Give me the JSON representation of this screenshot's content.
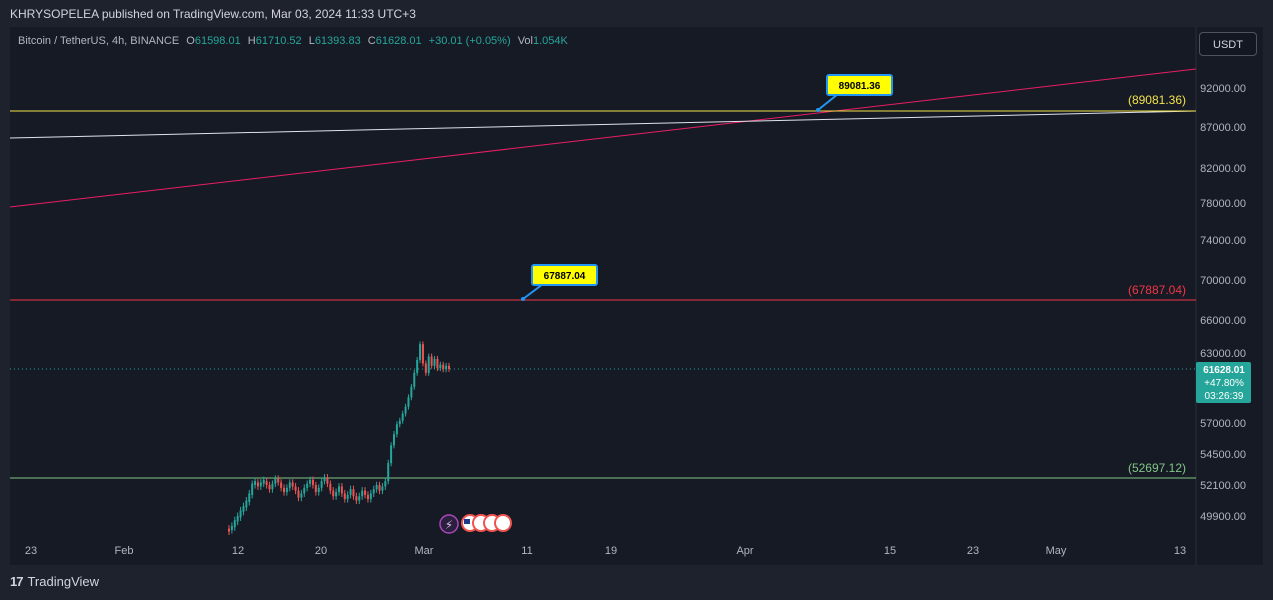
{
  "header": {
    "published_line": "KHRYSOPELEA published on TradingView.com, Mar 03, 2024 11:33 UTC+3"
  },
  "legend": {
    "symbol": "Bitcoin / TetherUS, 4h, BINANCE",
    "o_label": "O",
    "o_value": "61598.01",
    "h_label": "H",
    "h_value": "61710.52",
    "l_label": "L",
    "l_value": "61393.83",
    "c_label": "C",
    "c_value": "61628.01",
    "change": "+30.01 (+0.05%)",
    "vol_label": "Vol",
    "vol_value": "1.054K"
  },
  "currency_button": "USDT",
  "footer": {
    "brand": "TradingView"
  },
  "colors": {
    "up": "#26a69a",
    "down": "#ef5350",
    "yellow_line": "#f2e24b",
    "red_line": "#f23645",
    "green_line": "#81c784",
    "pink_trend": "#e91e63",
    "white_trend": "#e0e3eb",
    "callout_fill": "#ffff00",
    "callout_border": "#2196f3"
  },
  "chart_data": {
    "type": "candlestick",
    "symbol": "BTCUSDT",
    "timeframe": "4h",
    "y_ticks": [
      "92000.00",
      "87000.00",
      "82000.00",
      "78000.00",
      "74000.00",
      "70000.00",
      "66000.00",
      "63000.00",
      "57000.00",
      "54500.00",
      "52100.00",
      "49900.00"
    ],
    "x_ticks": [
      "23",
      "Feb",
      "12",
      "20",
      "Mar",
      "11",
      "19",
      "Apr",
      "15",
      "23",
      "May",
      "13"
    ],
    "last_price": {
      "value": "61628.01",
      "change_pct": "+47.80%",
      "countdown": "03:26:39"
    },
    "horizontal_lines": [
      {
        "value": 89081.36,
        "label": "(89081.36)",
        "color": "yellow"
      },
      {
        "value": 67887.04,
        "label": "(67887.04)",
        "color": "red"
      },
      {
        "value": 52697.12,
        "label": "(52697.12)",
        "color": "green"
      }
    ],
    "callouts": [
      {
        "text": "89081.36",
        "value": 89081.36
      },
      {
        "text": "67887.04",
        "value": 67887.04
      }
    ],
    "trendlines": [
      {
        "name": "",
        "color": "pink",
        "start_value": 77700,
        "end_value": 94300
      },
      {
        "name": "",
        "color": "white",
        "start_value": 85600,
        "end_value": 89081.36
      }
    ],
    "price_path": [
      [
        49000,
        48800
      ],
      [
        48900,
        49200
      ],
      [
        49100,
        49600
      ],
      [
        49500,
        49900
      ],
      [
        49800,
        50300
      ],
      [
        50200,
        50600
      ],
      [
        50500,
        51000
      ],
      [
        50900,
        51500
      ],
      [
        51400,
        52200
      ],
      [
        52100,
        52400
      ],
      [
        52300,
        52000
      ],
      [
        52000,
        52300
      ],
      [
        52200,
        52500
      ],
      [
        52400,
        52100
      ],
      [
        52100,
        51800
      ],
      [
        51800,
        52200
      ],
      [
        52200,
        52600
      ],
      [
        52600,
        52300
      ],
      [
        52300,
        51900
      ],
      [
        51900,
        51600
      ],
      [
        51600,
        51900
      ],
      [
        51900,
        52300
      ],
      [
        52300,
        52000
      ],
      [
        52000,
        51700
      ],
      [
        51700,
        51200
      ],
      [
        51200,
        51500
      ],
      [
        51500,
        51900
      ],
      [
        51900,
        52200
      ],
      [
        52200,
        52500
      ],
      [
        52500,
        52100
      ],
      [
        52100,
        51600
      ],
      [
        51600,
        51900
      ],
      [
        51900,
        52400
      ],
      [
        52400,
        52700
      ],
      [
        52700,
        52200
      ],
      [
        52200,
        51700
      ],
      [
        51700,
        51300
      ],
      [
        51300,
        51600
      ],
      [
        51600,
        52000
      ],
      [
        52000,
        51500
      ],
      [
        51500,
        51100
      ],
      [
        51100,
        51400
      ],
      [
        51400,
        51800
      ],
      [
        51800,
        51300
      ],
      [
        51300,
        51000
      ],
      [
        51000,
        51300
      ],
      [
        51300,
        51700
      ],
      [
        51700,
        51400
      ],
      [
        51400,
        51100
      ],
      [
        51100,
        51500
      ],
      [
        51500,
        51800
      ],
      [
        51800,
        52100
      ],
      [
        52100,
        51700
      ],
      [
        51700,
        52000
      ],
      [
        52000,
        52400
      ],
      [
        52400,
        53800
      ],
      [
        53800,
        55200
      ],
      [
        55200,
        56100
      ],
      [
        56100,
        56900
      ],
      [
        56900,
        57200
      ],
      [
        57200,
        57800
      ],
      [
        57800,
        58400
      ],
      [
        58400,
        59200
      ],
      [
        59200,
        60100
      ],
      [
        60100,
        61300
      ],
      [
        61300,
        62400
      ],
      [
        62400,
        63800
      ],
      [
        63800,
        62100
      ],
      [
        62100,
        61300
      ],
      [
        61300,
        62700
      ],
      [
        62700,
        61900
      ],
      [
        61900,
        62500
      ],
      [
        62500,
        61700
      ],
      [
        61700,
        62000
      ],
      [
        62000,
        61600
      ],
      [
        61600,
        61900
      ],
      [
        61900,
        61628
      ]
    ]
  }
}
